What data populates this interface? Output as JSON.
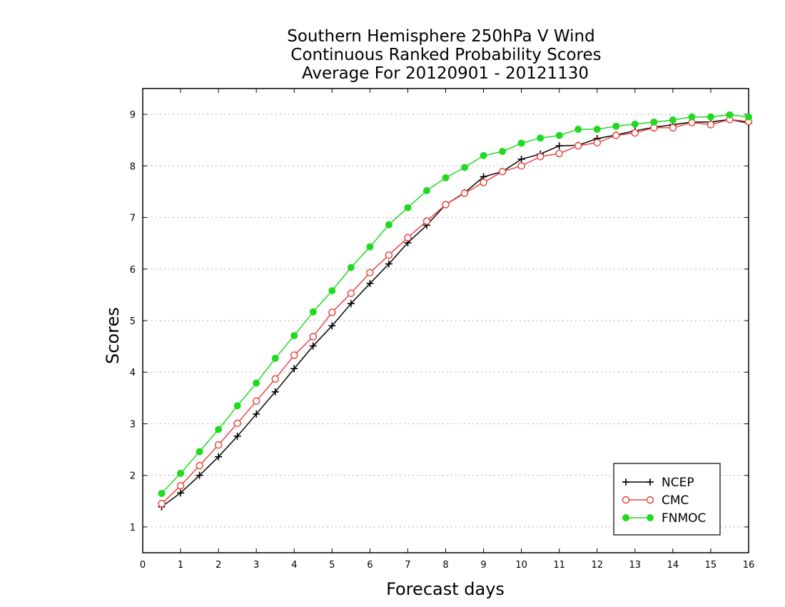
{
  "chart_data": {
    "type": "line",
    "title_lines": [
      "Southern Hemisphere 250hPa V Wind",
      "Continuous Ranked Probability Scores",
      "Average For 20120901 - 20121130"
    ],
    "xlabel": "Forecast days",
    "ylabel": "Scores",
    "xlim": [
      0,
      16
    ],
    "ylim": [
      0.5,
      9.5
    ],
    "xticks": [
      "0",
      "1",
      "2",
      "3",
      "4",
      "5",
      "6",
      "7",
      "8",
      "9",
      "10",
      "11",
      "12",
      "13",
      "14",
      "15",
      "16"
    ],
    "yticks": [
      "1",
      "2",
      "3",
      "4",
      "5",
      "6",
      "7",
      "8",
      "9"
    ],
    "grid": "horizontal dotted",
    "legend_position": "bottom-right",
    "x": [
      0.5,
      1,
      1.5,
      2,
      2.5,
      3,
      3.5,
      4,
      4.5,
      5,
      5.5,
      6,
      6.5,
      7,
      7.5,
      8,
      8.5,
      9,
      9.5,
      10,
      10.5,
      11,
      11.5,
      12,
      12.5,
      13,
      13.5,
      14,
      14.5,
      15,
      15.5,
      16
    ],
    "series": [
      {
        "name": "NCEP",
        "color": "#000000",
        "marker": "plus",
        "values": [
          1.39,
          1.66,
          2.0,
          2.36,
          2.76,
          3.19,
          3.62,
          4.07,
          4.51,
          4.9,
          5.33,
          5.72,
          6.1,
          6.51,
          6.85,
          7.25,
          7.48,
          7.79,
          7.89,
          8.13,
          8.23,
          8.39,
          8.4,
          8.53,
          8.6,
          8.68,
          8.75,
          8.8,
          8.85,
          8.85,
          8.9,
          8.83
        ]
      },
      {
        "name": "CMC",
        "color": "#e8473f",
        "marker": "open-circle",
        "values": [
          1.45,
          1.8,
          2.19,
          2.59,
          3.01,
          3.44,
          3.87,
          4.33,
          4.69,
          5.16,
          5.53,
          5.93,
          6.27,
          6.61,
          6.93,
          7.25,
          7.47,
          7.68,
          7.89,
          8.0,
          8.18,
          8.24,
          8.39,
          8.45,
          8.59,
          8.64,
          8.74,
          8.74,
          8.84,
          8.8,
          8.9,
          8.86
        ]
      },
      {
        "name": "FNMOC",
        "color": "#22d922",
        "marker": "filled-circle",
        "values": [
          1.65,
          2.04,
          2.46,
          2.89,
          3.35,
          3.79,
          4.27,
          4.71,
          5.17,
          5.58,
          6.03,
          6.43,
          6.86,
          7.19,
          7.52,
          7.77,
          7.97,
          8.2,
          8.28,
          8.44,
          8.54,
          8.59,
          8.71,
          8.71,
          8.77,
          8.81,
          8.85,
          8.89,
          8.95,
          8.95,
          8.99,
          8.95
        ]
      }
    ]
  }
}
